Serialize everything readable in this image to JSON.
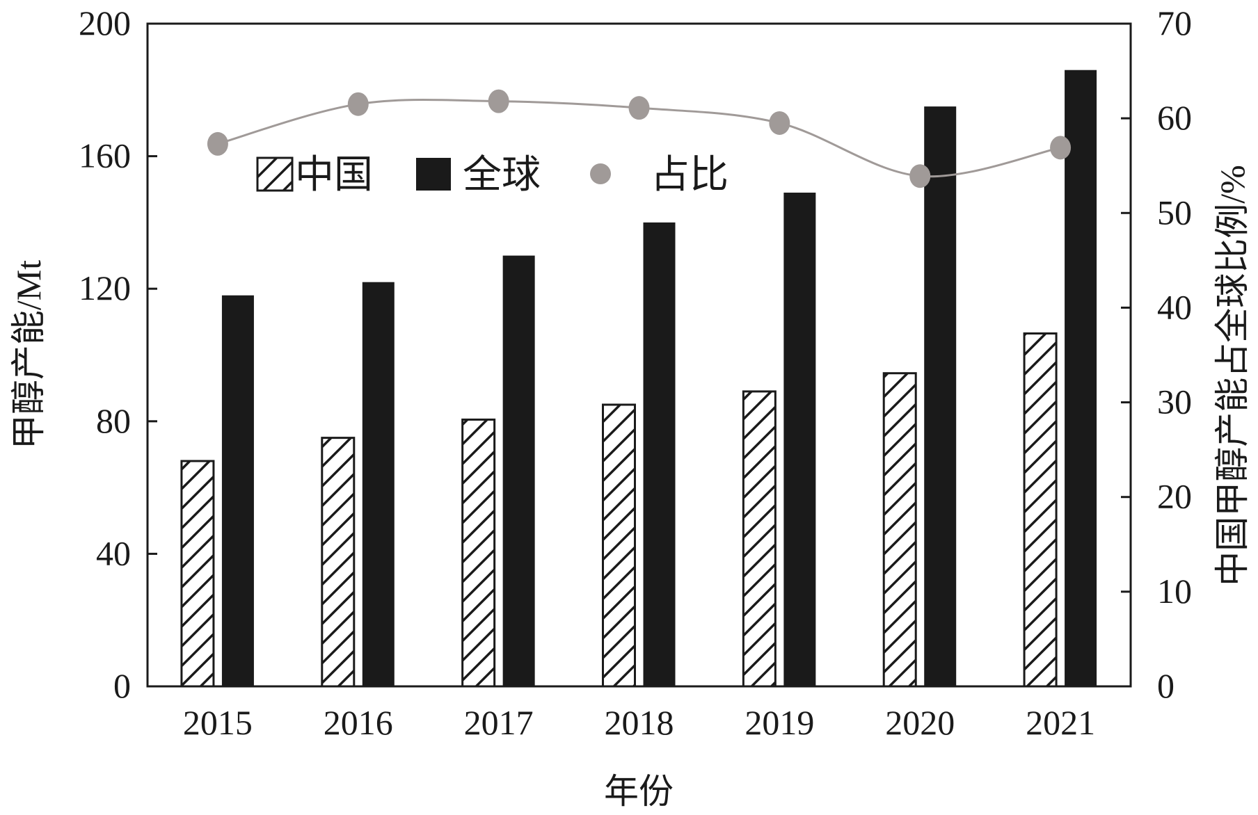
{
  "chart_data": {
    "type": "bar",
    "title": "",
    "xlabel": "年份",
    "ylabel": "甲醇产能/Mt",
    "y2label": "中国甲醇产能占全球比例/%",
    "categories": [
      "2015",
      "2016",
      "2017",
      "2018",
      "2019",
      "2020",
      "2021"
    ],
    "ylim": [
      0,
      200
    ],
    "y2lim": [
      0,
      70
    ],
    "yticks": [
      "0",
      "40",
      "80",
      "120",
      "160",
      "200"
    ],
    "y2ticks": [
      "0",
      "10",
      "20",
      "30",
      "40",
      "50",
      "60",
      "70"
    ],
    "grid": false,
    "legend_position": "top-left",
    "series": [
      {
        "name": "中国",
        "kind": "bar",
        "pattern": "hatched",
        "axis": "left",
        "color": "#ffffff",
        "values": [
          68,
          75,
          80.5,
          85,
          89,
          94.5,
          106.5
        ]
      },
      {
        "name": "全球",
        "kind": "bar",
        "pattern": "solid",
        "axis": "left",
        "color": "#1a1a1a",
        "values": [
          118,
          122,
          130,
          140,
          149,
          175,
          186
        ]
      },
      {
        "name": "占比",
        "kind": "line",
        "axis": "right",
        "color": "#a09a98",
        "values": [
          57.3,
          61.5,
          61.8,
          61.1,
          59.5,
          53.9,
          56.9
        ]
      }
    ]
  }
}
